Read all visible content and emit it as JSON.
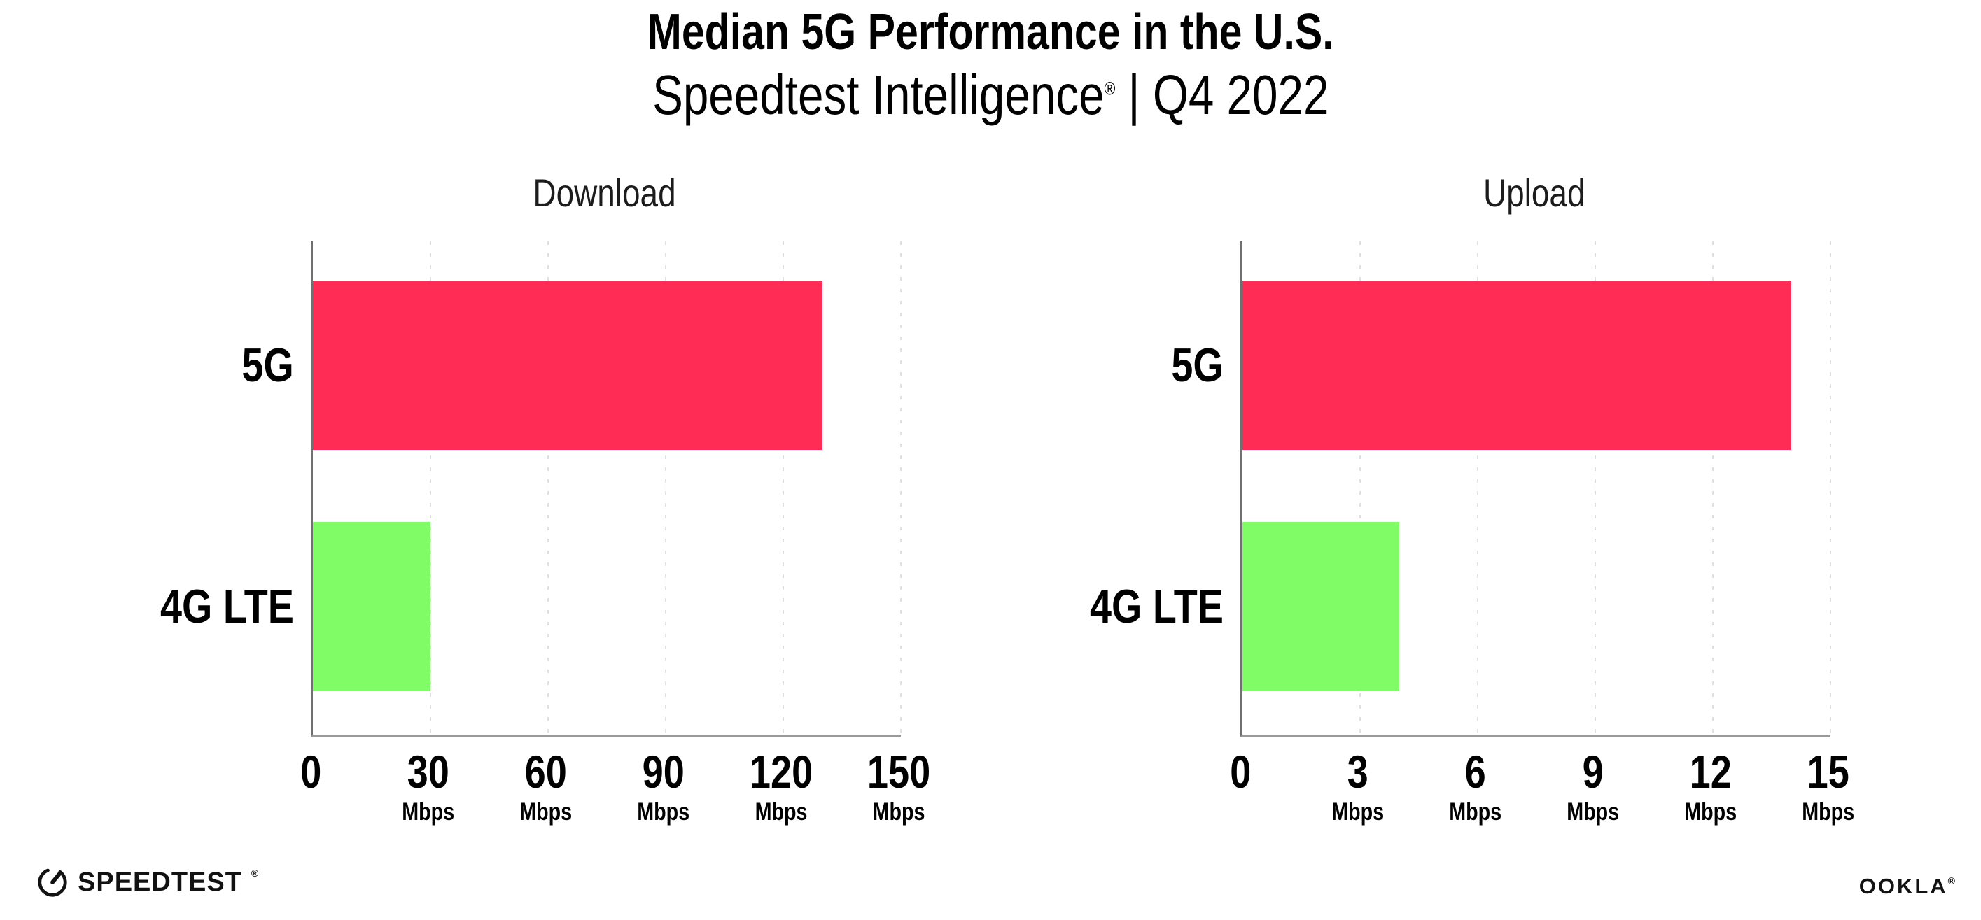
{
  "header": {
    "title": "Median 5G Performance in the U.S.",
    "subtitle_brand": "Speedtest Intelligence",
    "subtitle_reg": "®",
    "subtitle_rest": "| Q4 2022"
  },
  "chart_data": [
    {
      "type": "bar",
      "orientation": "horizontal",
      "title": "Download",
      "categories": [
        "5G",
        "4G LTE"
      ],
      "values": [
        130,
        30
      ],
      "unit": "Mbps",
      "xlim": [
        0,
        150
      ],
      "xticks": [
        0,
        30,
        60,
        90,
        120,
        150
      ],
      "bar_colors": [
        "#FF2D55",
        "#80FC66"
      ],
      "grid": "dotted-vertical",
      "legend": "none"
    },
    {
      "type": "bar",
      "orientation": "horizontal",
      "title": "Upload",
      "categories": [
        "5G",
        "4G LTE"
      ],
      "values": [
        14,
        4
      ],
      "unit": "Mbps",
      "xlim": [
        0,
        15
      ],
      "xticks": [
        0,
        3,
        6,
        9,
        12,
        15
      ],
      "bar_colors": [
        "#FF2D55",
        "#80FC66"
      ],
      "grid": "dotted-vertical",
      "legend": "none"
    }
  ],
  "footer": {
    "speedtest_icon": "speedometer-gauge-icon",
    "speedtest_text": "SPEEDTEST",
    "speedtest_mark": "®",
    "ookla_text": "OOKLA",
    "ookla_mark": "®"
  },
  "colors": {
    "bar_5g": "#FF2D55",
    "bar_4g_lte": "#80FC66",
    "gridline": "#DFDFE9",
    "axis_x": "#9A9A9A",
    "axis_y": "#707070",
    "text": "#000000",
    "logo": "#121212"
  }
}
